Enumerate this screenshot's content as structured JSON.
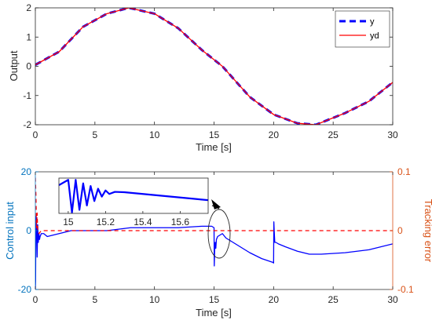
{
  "chart_data": [
    {
      "type": "line",
      "xlabel": "Time [s]",
      "ylabel": "Output",
      "xlim": [
        0,
        30
      ],
      "ylim": [
        -2,
        2
      ],
      "xticks": [
        0,
        5,
        10,
        15,
        20,
        25,
        30
      ],
      "yticks": [
        -2,
        -1,
        0,
        1,
        2
      ],
      "grid": false,
      "legend_position": "top-right",
      "series": [
        {
          "name": "y",
          "style": "dashed",
          "color": "#0000ff",
          "x": [
            0,
            2,
            4,
            6,
            7.85,
            10,
            12,
            14,
            15.7,
            18,
            20,
            22,
            23.55,
            26,
            28,
            30
          ],
          "y": [
            0.05,
            0.5,
            1.35,
            1.8,
            2.0,
            1.8,
            1.3,
            0.55,
            0.0,
            -1.05,
            -1.65,
            -1.95,
            -2.0,
            -1.6,
            -1.2,
            -0.55
          ]
        },
        {
          "name": "yd",
          "style": "solid",
          "color": "#ff0000",
          "x": [
            0,
            2,
            4,
            6,
            7.85,
            10,
            12,
            14,
            15.7,
            18,
            20,
            22,
            23.55,
            26,
            28,
            30
          ],
          "y": [
            0.05,
            0.5,
            1.35,
            1.8,
            2.0,
            1.8,
            1.3,
            0.55,
            0.0,
            -1.05,
            -1.65,
            -1.95,
            -2.0,
            -1.6,
            -1.2,
            -0.55
          ]
        }
      ]
    },
    {
      "type": "line",
      "xlabel": "Time [s]",
      "ylabel_left": "Control input",
      "ylabel_right": "Tracking error",
      "xlim": [
        0,
        30
      ],
      "ylim_left": [
        -20,
        20
      ],
      "ylim_right": [
        -0.1,
        0.1
      ],
      "xticks": [
        0,
        5,
        10,
        15,
        20,
        25,
        30
      ],
      "yticks_left": [
        -20,
        0,
        20
      ],
      "yticks_right": [
        -0.1,
        0,
        0.1
      ],
      "left_axis_color": "#0072bd",
      "right_axis_color": "#d95319",
      "grid": false,
      "series": [
        {
          "axis": "left",
          "style": "solid",
          "color": "#0000ff",
          "x": [
            0,
            0.02,
            0.05,
            0.1,
            0.15,
            0.2,
            0.25,
            0.3,
            0.35,
            0.4,
            0.5,
            0.7,
            1,
            2,
            3,
            4,
            6,
            8,
            10,
            12,
            14,
            14.8,
            15.0,
            15.02,
            15.05,
            15.1,
            15.15,
            15.2,
            15.3,
            15.5,
            15.7,
            16,
            17,
            18,
            19,
            19.95,
            20.0,
            20.02,
            20.05,
            20.1,
            20.2,
            20.4,
            20.7,
            21,
            22,
            23,
            24,
            26,
            28,
            30
          ],
          "y": [
            -20,
            -17,
            5,
            3,
            -9,
            2,
            -4,
            -1,
            -3,
            -2,
            -1,
            -1,
            -2,
            -1,
            0,
            0,
            0,
            1,
            1,
            1,
            1.5,
            1.5,
            1,
            -12,
            -7,
            -4,
            -6,
            -3,
            -2,
            -1.5,
            -1,
            -2.5,
            -5,
            -7.5,
            -9.5,
            -10.8,
            -11,
            3,
            0,
            -4,
            -4,
            -4.5,
            -5,
            -5.5,
            -7,
            -8,
            -8,
            -7.5,
            -6.5,
            -4.5
          ]
        },
        {
          "axis": "right",
          "style": "dashed",
          "color": "#ff0000",
          "x": [
            0,
            0.05,
            0.1,
            0.15,
            0.2,
            0.3,
            0.5,
            1,
            30
          ],
          "y": [
            0.09,
            0.06,
            0.005,
            0.03,
            0.0,
            -0.005,
            0.0,
            0.0,
            0.0
          ]
        }
      ],
      "inset": {
        "xlim": [
          14.95,
          15.75
        ],
        "xticks": [
          15,
          15.2,
          15.4,
          15.6
        ],
        "ylim": [
          -1,
          1
        ],
        "series": [
          {
            "color": "#0000ff",
            "x": [
              14.95,
              15.0,
              15.02,
              15.04,
              15.06,
              15.08,
              15.1,
              15.12,
              15.14,
              15.16,
              15.18,
              15.2,
              15.22,
              15.25,
              15.3,
              15.4,
              15.5,
              15.6,
              15.7,
              15.75
            ],
            "y": [
              0.6,
              0.9,
              -0.95,
              0.9,
              -0.8,
              0.7,
              -0.55,
              0.55,
              -0.3,
              0.4,
              -0.05,
              0.3,
              0.1,
              0.22,
              0.2,
              0.1,
              0.0,
              -0.1,
              -0.2,
              -0.25
            ]
          }
        ]
      }
    }
  ]
}
